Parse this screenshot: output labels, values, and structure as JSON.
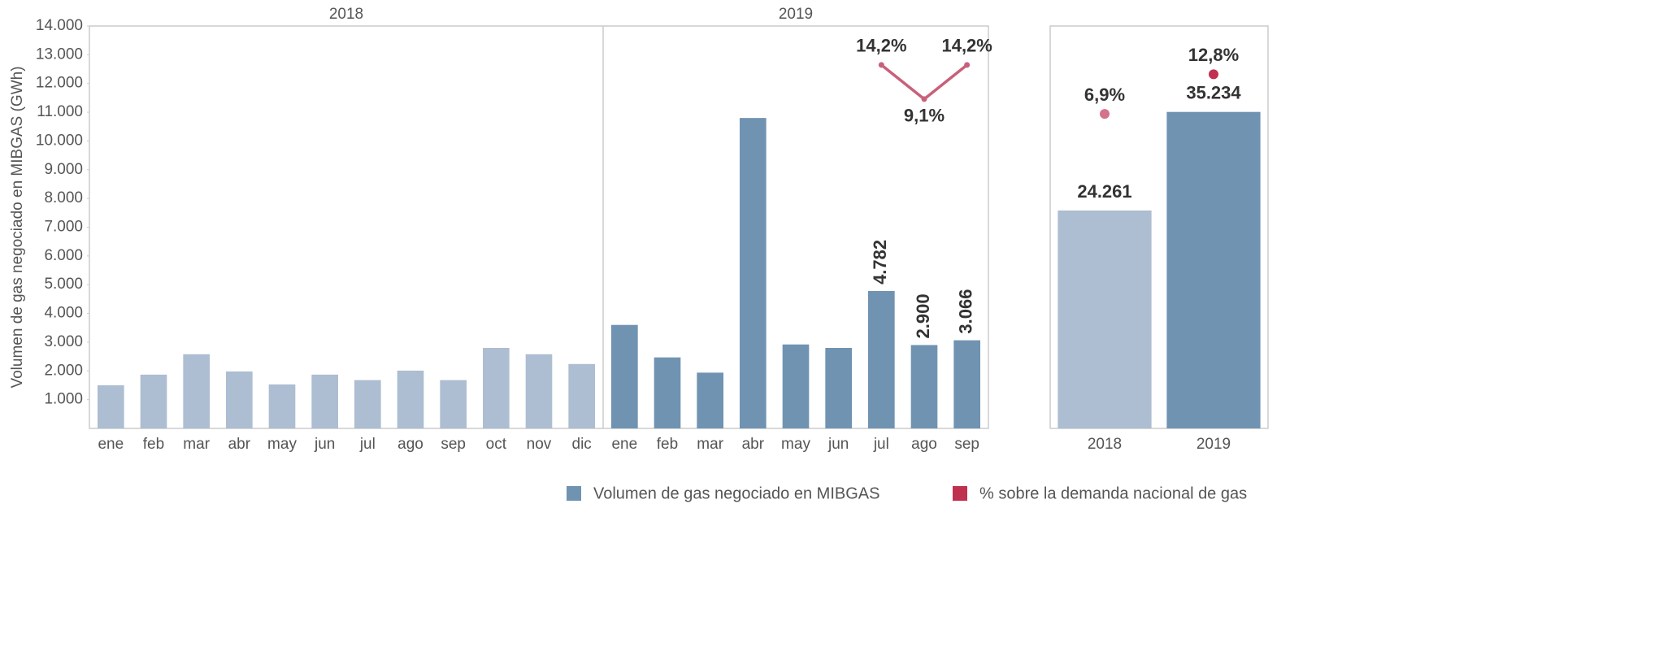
{
  "chart_data": [
    {
      "type": "bar",
      "y_label": "Volumen de gas negociado en MIBGAS (GWh)",
      "categories": [
        "ene",
        "feb",
        "mar",
        "abr",
        "may",
        "jun",
        "jul",
        "ago",
        "sep",
        "oct",
        "nov",
        "dic",
        "ene",
        "feb",
        "mar",
        "abr",
        "may",
        "jun",
        "jul",
        "ago",
        "sep"
      ],
      "series": [
        {
          "name": "2018",
          "color": "#adbdd2",
          "values": [
            1500,
            1870,
            2580,
            1980,
            1530,
            1870,
            1680,
            2010,
            1680,
            2800,
            2580,
            2240,
            null,
            null,
            null,
            null,
            null,
            null,
            null,
            null,
            null
          ]
        },
        {
          "name": "2019",
          "color": "#7093b2",
          "values": [
            null,
            null,
            null,
            null,
            null,
            null,
            null,
            null,
            null,
            null,
            null,
            null,
            3600,
            2470,
            1940,
            10800,
            2920,
            2800,
            4782,
            2900,
            3066
          ],
          "value_labels": [
            null,
            null,
            null,
            null,
            null,
            null,
            null,
            null,
            null,
            null,
            null,
            null,
            null,
            null,
            null,
            null,
            null,
            null,
            "4.782",
            "2.900",
            "3.066"
          ]
        }
      ],
      "percent": {
        "axis": "y2",
        "color": "#c9607a",
        "values": [
          null,
          null,
          null,
          null,
          null,
          null,
          null,
          null,
          null,
          null,
          null,
          null,
          null,
          null,
          null,
          null,
          null,
          null,
          14.2,
          9.1,
          14.2
        ],
        "value_labels": [
          null,
          null,
          null,
          null,
          null,
          null,
          null,
          null,
          null,
          null,
          null,
          null,
          null,
          null,
          null,
          null,
          null,
          null,
          "14,2%",
          "9,1%",
          "14,2%"
        ]
      },
      "ylim": [
        0,
        14000
      ],
      "yticks": [
        {
          "value": 1000,
          "label": "1.000"
        },
        {
          "value": 2000,
          "label": "2.000"
        },
        {
          "value": 3000,
          "label": "3.000"
        },
        {
          "value": 4000,
          "label": "4.000"
        },
        {
          "value": 5000,
          "label": "5.000"
        },
        {
          "value": 6000,
          "label": "6.000"
        },
        {
          "value": 7000,
          "label": "7.000"
        },
        {
          "value": 8000,
          "label": "8.000"
        },
        {
          "value": 9000,
          "label": "9.000"
        },
        {
          "value": 10000,
          "label": "10.000"
        },
        {
          "value": 11000,
          "label": "11.000"
        },
        {
          "value": 12000,
          "label": "12.000"
        },
        {
          "value": 13000,
          "label": "13.000"
        },
        {
          "value": 14000,
          "label": "14.000"
        }
      ],
      "y2lim": [
        -40,
        20
      ],
      "legend": [
        {
          "name": "Volumen de gas negociado en MIBGAS",
          "color": "#7093b2"
        },
        {
          "name": "% sobre la demanda nacional de gas",
          "color": "#c0304f"
        }
      ]
    },
    {
      "type": "bar",
      "categories": [
        "2018",
        "2019"
      ],
      "values": [
        24261,
        35234
      ],
      "value_labels": [
        "24.261",
        "35.234"
      ],
      "colors": [
        "#adbdd2",
        "#7093b2"
      ],
      "percent": {
        "axis": "y2",
        "values": [
          6.9,
          12.8
        ],
        "value_labels": [
          "6,9%",
          "12,8%"
        ],
        "colors": [
          "#d4728a",
          "#c0304f"
        ]
      },
      "ylim": [
        0,
        44800
      ],
      "y2lim": [
        -40,
        20
      ]
    }
  ]
}
